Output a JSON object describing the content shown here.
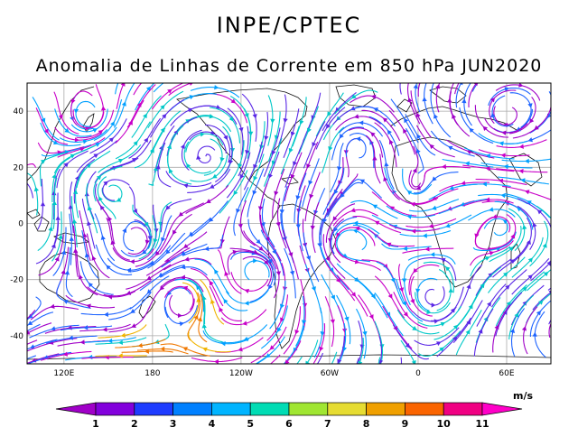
{
  "header": {
    "org": "INPE/CPTEC",
    "title": "Anomalia de Linhas de Corrente em 850 hPa JUN2020"
  },
  "map": {
    "lon_range": [
      95,
      90
    ],
    "lat_range": [
      -50,
      50
    ],
    "lat_ticks": [
      {
        "value": 40,
        "label": "40"
      },
      {
        "value": 20,
        "label": "20"
      },
      {
        "value": 0,
        "label": "0"
      },
      {
        "value": -20,
        "label": "-20"
      },
      {
        "value": -40,
        "label": "-40"
      }
    ],
    "lon_ticks": [
      {
        "value": 120,
        "label": "120E"
      },
      {
        "value": 180,
        "label": "180"
      },
      {
        "value": 240,
        "label": "120W"
      },
      {
        "value": 300,
        "label": "60W"
      },
      {
        "value": 360,
        "label": "0"
      },
      {
        "value": 420,
        "label": "60E"
      }
    ],
    "grid": true
  },
  "colorbar": {
    "unit": "m/s",
    "labels": [
      "1",
      "2",
      "3",
      "4",
      "5",
      "6",
      "7",
      "8",
      "9",
      "10",
      "11"
    ],
    "colors": [
      "#a000c8",
      "#8200dc",
      "#1e3cff",
      "#0080ff",
      "#00b4ff",
      "#00dcb4",
      "#a0e632",
      "#e6dc32",
      "#f0a000",
      "#fa6400",
      "#f00082",
      "#ff00c8"
    ]
  },
  "streamline_colors": [
    "#a000c8",
    "#c800c8",
    "#5a28e6",
    "#1e64ff",
    "#00a0ff",
    "#00c8c8",
    "#20c8a0",
    "#a0dc3c",
    "#f0b400",
    "#f07800"
  ]
}
